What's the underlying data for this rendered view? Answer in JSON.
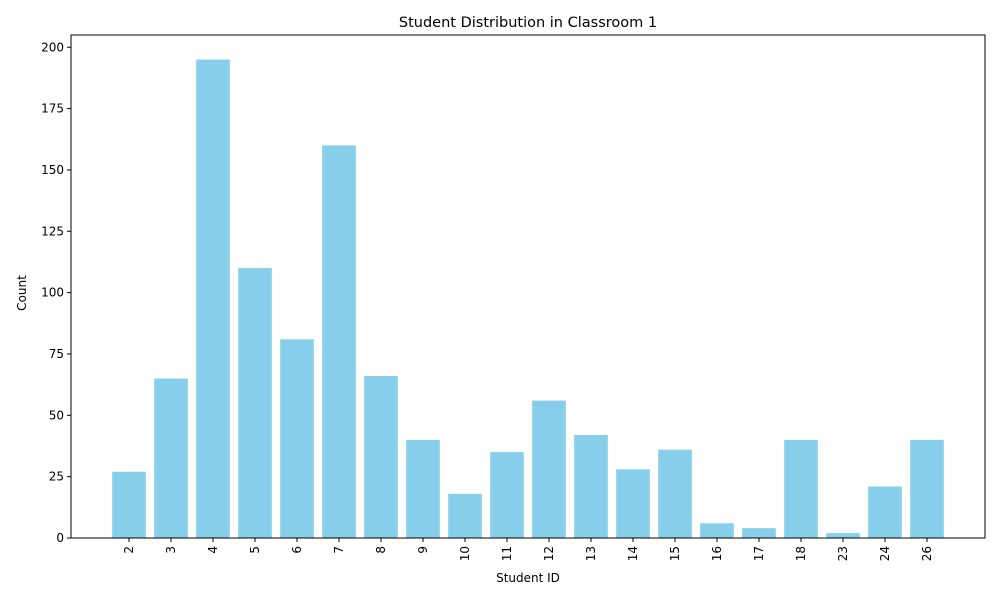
{
  "chart_data": {
    "type": "bar",
    "title": "Student Distribution in Classroom 1",
    "xlabel": "Student ID",
    "ylabel": "Count",
    "categories": [
      "2",
      "3",
      "4",
      "5",
      "6",
      "7",
      "8",
      "9",
      "10",
      "11",
      "12",
      "13",
      "14",
      "15",
      "16",
      "17",
      "18",
      "23",
      "24",
      "26"
    ],
    "values": [
      27,
      65,
      195,
      110,
      81,
      160,
      66,
      40,
      18,
      35,
      56,
      42,
      28,
      36,
      6,
      4,
      40,
      2,
      21,
      40
    ],
    "ylim": [
      0,
      205
    ],
    "yticks": [
      0,
      25,
      50,
      75,
      100,
      125,
      150,
      175,
      200
    ],
    "bar_color": "#87CEEB",
    "grid": false,
    "legend": false,
    "x_tick_rotation": 90
  }
}
